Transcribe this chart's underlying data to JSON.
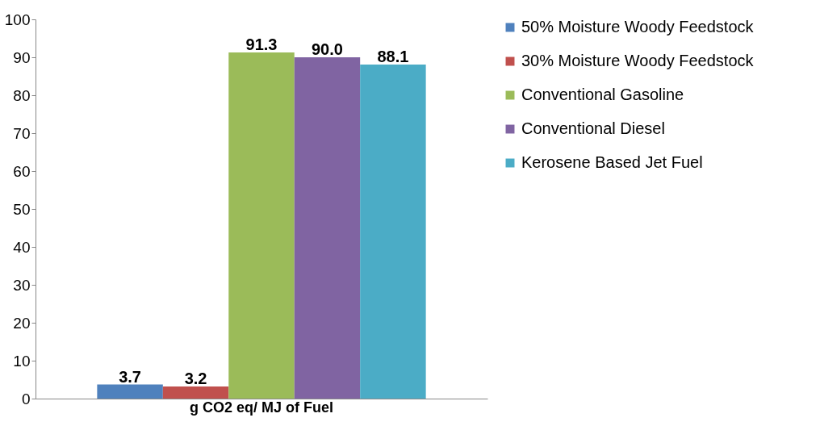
{
  "chart_data": {
    "type": "bar",
    "categories": [
      "g CO2 eq/ MJ of Fuel"
    ],
    "series": [
      {
        "name": "50% Moisture Woody Feedstock",
        "color": "#4f81bd",
        "values": [
          3.7
        ],
        "value_labels": [
          "3.7"
        ]
      },
      {
        "name": "30% Moisture Woody Feedstock",
        "color": "#c0504d",
        "values": [
          3.2
        ],
        "value_labels": [
          "3.2"
        ]
      },
      {
        "name": "Conventional Gasoline",
        "color": "#9bbb59",
        "values": [
          91.3
        ],
        "value_labels": [
          "91.3"
        ]
      },
      {
        "name": "Conventional Diesel",
        "color": "#8064a2",
        "values": [
          90.0
        ],
        "value_labels": [
          "90.0"
        ]
      },
      {
        "name": "Kerosene Based Jet Fuel",
        "color": "#4bacc6",
        "values": [
          88.1
        ],
        "value_labels": [
          "88.1"
        ]
      }
    ],
    "ylim": [
      0,
      100
    ],
    "yticks": [
      0,
      10,
      20,
      30,
      40,
      50,
      60,
      70,
      80,
      90,
      100
    ],
    "legend": "right",
    "grid": false
  }
}
